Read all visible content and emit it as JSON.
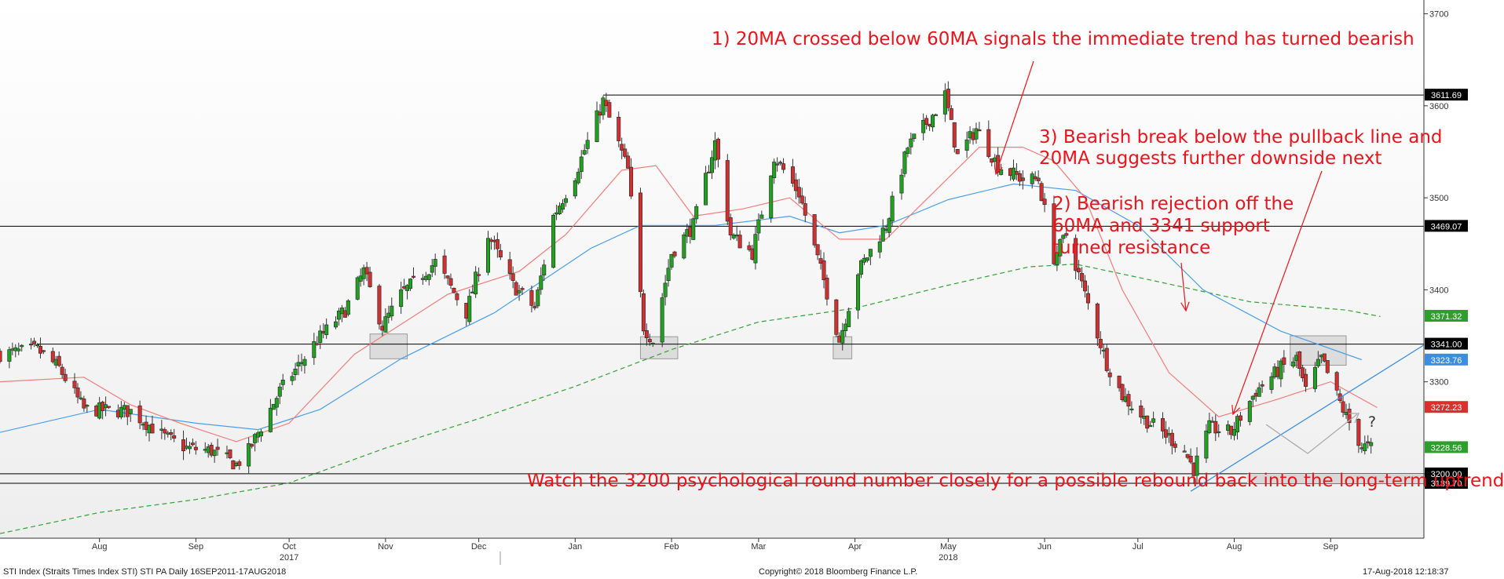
{
  "chart_data": {
    "type": "candlestick",
    "instrument": "STI Index (Straits Times Index STI) STI PA",
    "period": "Daily 16SEP2011-17AUG2018",
    "ylim": [
      3130,
      3715
    ],
    "y_ticks": [
      3200,
      3300,
      3400,
      3500,
      3600,
      3700
    ],
    "y_tick_labels": [
      "3200",
      "3300",
      "3400",
      "3500",
      "3600",
      "3700"
    ],
    "x_start": "2017-07-14",
    "x_end": "2018-10-15",
    "month_labels": [
      {
        "label": "Aug",
        "date": "2017-08-15"
      },
      {
        "label": "Sep",
        "date": "2017-09-15"
      },
      {
        "label": "Oct",
        "date": "2017-10-15"
      },
      {
        "label": "Nov",
        "date": "2017-11-15"
      },
      {
        "label": "Dec",
        "date": "2017-12-15"
      },
      {
        "label": "Jan",
        "date": "2018-01-15"
      },
      {
        "label": "Feb",
        "date": "2018-02-15"
      },
      {
        "label": "Mar",
        "date": "2018-03-15"
      },
      {
        "label": "Apr",
        "date": "2018-04-15"
      },
      {
        "label": "May",
        "date": "2018-05-15"
      },
      {
        "label": "Jun",
        "date": "2018-06-15"
      },
      {
        "label": "Jul",
        "date": "2018-07-15"
      },
      {
        "label": "Aug",
        "date": "2018-08-15"
      },
      {
        "label": "Sep",
        "date": "2018-09-15"
      }
    ],
    "year_labels": [
      {
        "label": "2017",
        "date": "2017-10-15"
      },
      {
        "label": "2018",
        "date": "2018-05-15"
      }
    ],
    "price_path": [
      {
        "date": "2017-07-14",
        "close": 3330
      },
      {
        "date": "2017-07-26",
        "close": 3335
      },
      {
        "date": "2017-08-02",
        "close": 3315
      },
      {
        "date": "2017-08-10",
        "close": 3270
      },
      {
        "date": "2017-08-25",
        "close": 3268
      },
      {
        "date": "2017-09-05",
        "close": 3240
      },
      {
        "date": "2017-09-12",
        "close": 3228
      },
      {
        "date": "2017-09-20",
        "close": 3225
      },
      {
        "date": "2017-09-28",
        "close": 3210
      },
      {
        "date": "2017-10-02",
        "close": 3225
      },
      {
        "date": "2017-10-12",
        "close": 3290
      },
      {
        "date": "2017-10-24",
        "close": 3345
      },
      {
        "date": "2017-11-02",
        "close": 3378
      },
      {
        "date": "2017-11-08",
        "close": 3420
      },
      {
        "date": "2017-11-14",
        "close": 3360
      },
      {
        "date": "2017-11-20",
        "close": 3395
      },
      {
        "date": "2017-12-01",
        "close": 3430
      },
      {
        "date": "2017-12-11",
        "close": 3375
      },
      {
        "date": "2017-12-18",
        "close": 3460
      },
      {
        "date": "2017-12-26",
        "close": 3405
      },
      {
        "date": "2018-01-02",
        "close": 3380
      },
      {
        "date": "2018-01-08",
        "close": 3480
      },
      {
        "date": "2018-01-15",
        "close": 3525
      },
      {
        "date": "2018-01-24",
        "close": 3605
      },
      {
        "date": "2018-02-01",
        "close": 3530
      },
      {
        "date": "2018-02-06",
        "close": 3360
      },
      {
        "date": "2018-02-09",
        "close": 3345
      },
      {
        "date": "2018-02-15",
        "close": 3440
      },
      {
        "date": "2018-02-22",
        "close": 3470
      },
      {
        "date": "2018-03-01",
        "close": 3560
      },
      {
        "date": "2018-03-06",
        "close": 3460
      },
      {
        "date": "2018-03-13",
        "close": 3440
      },
      {
        "date": "2018-03-20",
        "close": 3545
      },
      {
        "date": "2018-03-28",
        "close": 3505
      },
      {
        "date": "2018-04-05",
        "close": 3410
      },
      {
        "date": "2018-04-10",
        "close": 3345
      },
      {
        "date": "2018-04-16",
        "close": 3420
      },
      {
        "date": "2018-04-25",
        "close": 3470
      },
      {
        "date": "2018-05-02",
        "close": 3555
      },
      {
        "date": "2018-05-10",
        "close": 3590
      },
      {
        "date": "2018-05-14",
        "close": 3612
      },
      {
        "date": "2018-05-18",
        "close": 3545
      },
      {
        "date": "2018-05-24",
        "close": 3575
      },
      {
        "date": "2018-05-31",
        "close": 3535
      },
      {
        "date": "2018-06-08",
        "close": 3520
      },
      {
        "date": "2018-06-13",
        "close": 3520
      },
      {
        "date": "2018-06-18",
        "close": 3435
      },
      {
        "date": "2018-06-22",
        "close": 3460
      },
      {
        "date": "2018-06-28",
        "close": 3395
      },
      {
        "date": "2018-07-05",
        "close": 3320
      },
      {
        "date": "2018-07-10",
        "close": 3285
      },
      {
        "date": "2018-07-17",
        "close": 3260
      },
      {
        "date": "2018-07-25",
        "close": 3240
      },
      {
        "date": "2018-07-30",
        "close": 3225
      },
      {
        "date": "2018-08-02",
        "close": 3205
      },
      {
        "date": "2018-08-07",
        "close": 3250
      },
      {
        "date": "2018-08-14",
        "close": 3245
      },
      {
        "date": "2018-08-22",
        "close": 3290
      },
      {
        "date": "2018-08-30",
        "close": 3315
      },
      {
        "date": "2018-09-04",
        "close": 3325
      },
      {
        "date": "2018-09-07",
        "close": 3290
      },
      {
        "date": "2018-09-12",
        "close": 3325
      },
      {
        "date": "2018-09-17",
        "close": 3285
      },
      {
        "date": "2018-09-20",
        "close": 3262
      },
      {
        "date": "2018-09-25",
        "close": 3230
      },
      {
        "date": "2018-09-28",
        "close": 3228
      }
    ],
    "ma20": [
      {
        "date": "2017-07-14",
        "value": 3300
      },
      {
        "date": "2017-08-10",
        "value": 3305
      },
      {
        "date": "2017-08-25",
        "value": 3275
      },
      {
        "date": "2017-09-10",
        "value": 3255
      },
      {
        "date": "2017-09-28",
        "value": 3235
      },
      {
        "date": "2017-10-15",
        "value": 3255
      },
      {
        "date": "2017-11-05",
        "value": 3330
      },
      {
        "date": "2017-12-05",
        "value": 3395
      },
      {
        "date": "2017-12-28",
        "value": 3420
      },
      {
        "date": "2018-01-12",
        "value": 3460
      },
      {
        "date": "2018-01-30",
        "value": 3530
      },
      {
        "date": "2018-02-10",
        "value": 3535
      },
      {
        "date": "2018-02-22",
        "value": 3480
      },
      {
        "date": "2018-03-10",
        "value": 3488
      },
      {
        "date": "2018-03-25",
        "value": 3500
      },
      {
        "date": "2018-04-10",
        "value": 3455
      },
      {
        "date": "2018-04-25",
        "value": 3455
      },
      {
        "date": "2018-05-10",
        "value": 3505
      },
      {
        "date": "2018-05-25",
        "value": 3555
      },
      {
        "date": "2018-06-08",
        "value": 3555
      },
      {
        "date": "2018-06-18",
        "value": 3540
      },
      {
        "date": "2018-06-28",
        "value": 3500
      },
      {
        "date": "2018-07-10",
        "value": 3400
      },
      {
        "date": "2018-07-25",
        "value": 3310
      },
      {
        "date": "2018-08-10",
        "value": 3262
      },
      {
        "date": "2018-08-28",
        "value": 3280
      },
      {
        "date": "2018-09-15",
        "value": 3300
      },
      {
        "date": "2018-09-30",
        "value": 3272
      }
    ],
    "ma60": [
      {
        "date": "2017-07-14",
        "value": 3245
      },
      {
        "date": "2017-08-15",
        "value": 3270
      },
      {
        "date": "2017-09-15",
        "value": 3255
      },
      {
        "date": "2017-10-05",
        "value": 3248
      },
      {
        "date": "2017-10-25",
        "value": 3270
      },
      {
        "date": "2017-11-20",
        "value": 3325
      },
      {
        "date": "2017-12-20",
        "value": 3375
      },
      {
        "date": "2018-01-20",
        "value": 3445
      },
      {
        "date": "2018-02-05",
        "value": 3470
      },
      {
        "date": "2018-03-01",
        "value": 3470
      },
      {
        "date": "2018-03-25",
        "value": 3480
      },
      {
        "date": "2018-04-10",
        "value": 3462
      },
      {
        "date": "2018-04-25",
        "value": 3470
      },
      {
        "date": "2018-05-15",
        "value": 3498
      },
      {
        "date": "2018-06-05",
        "value": 3515
      },
      {
        "date": "2018-06-25",
        "value": 3508
      },
      {
        "date": "2018-07-15",
        "value": 3470
      },
      {
        "date": "2018-08-05",
        "value": 3400
      },
      {
        "date": "2018-08-30",
        "value": 3355
      },
      {
        "date": "2018-09-25",
        "value": 3324
      }
    ],
    "ma200": [
      {
        "date": "2017-07-14",
        "value": 3135
      },
      {
        "date": "2017-08-15",
        "value": 3158
      },
      {
        "date": "2017-09-15",
        "value": 3172
      },
      {
        "date": "2017-10-15",
        "value": 3190
      },
      {
        "date": "2017-11-15",
        "value": 3228
      },
      {
        "date": "2017-12-15",
        "value": 3260
      },
      {
        "date": "2018-01-15",
        "value": 3295
      },
      {
        "date": "2018-02-15",
        "value": 3335
      },
      {
        "date": "2018-03-15",
        "value": 3365
      },
      {
        "date": "2018-04-15",
        "value": 3380
      },
      {
        "date": "2018-05-15",
        "value": 3405
      },
      {
        "date": "2018-06-10",
        "value": 3425
      },
      {
        "date": "2018-06-25",
        "value": 3428
      },
      {
        "date": "2018-07-20",
        "value": 3410
      },
      {
        "date": "2018-08-20",
        "value": 3387
      },
      {
        "date": "2018-09-20",
        "value": 3378
      },
      {
        "date": "2018-10-01",
        "value": 3371
      }
    ],
    "horizontal_levels": [
      {
        "value": 3611.69,
        "label": "3611.69",
        "from": "2018-01-24",
        "color": "#000000"
      },
      {
        "value": 3469.07,
        "label": "3469.07",
        "from": "2017-07-14",
        "color": "#000000"
      },
      {
        "value": 3341.0,
        "label": "3341.00",
        "from": "2017-07-26",
        "color": "#000000"
      },
      {
        "value": 3200.0,
        "label": "3200.00",
        "from": "2017-07-14",
        "color": "#000000"
      },
      {
        "value": 3189.7,
        "label": "3189.70",
        "from": "2017-07-14",
        "color": "#000000"
      }
    ],
    "value_tags": [
      {
        "value": 3611.69,
        "label": "3611.69",
        "color": "#000000"
      },
      {
        "value": 3469.07,
        "label": "3469.07",
        "color": "#000000"
      },
      {
        "value": 3371.32,
        "label": "3371.32",
        "color": "#2e9e2e"
      },
      {
        "value": 3341.0,
        "label": "3341.00",
        "color": "#000000"
      },
      {
        "value": 3323.76,
        "label": "3323.76",
        "color": "#3a8de0"
      },
      {
        "value": 3272.23,
        "label": "3272.23",
        "color": "#d9302c"
      },
      {
        "value": 3228.56,
        "label": "3228.56",
        "color": "#2e9e2e"
      },
      {
        "value": 3200.0,
        "label": "3200.00",
        "color": "#000000"
      },
      {
        "value": 3189.7,
        "label": "3189.70",
        "color": "#000000"
      }
    ],
    "highlight_boxes": [
      {
        "from": "2017-11-10",
        "to": "2017-11-22",
        "y1": 3325,
        "y2": 3352
      },
      {
        "from": "2018-02-05",
        "to": "2018-02-17",
        "y1": 3325,
        "y2": 3349
      },
      {
        "from": "2018-04-08",
        "to": "2018-04-14",
        "y1": 3325,
        "y2": 3349
      },
      {
        "from": "2018-09-02",
        "to": "2018-09-20",
        "y1": 3318,
        "y2": 3350
      }
    ],
    "trendline": {
      "from_date": "2018-08-01",
      "from_value": 3181,
      "to_date": "2018-10-15",
      "to_value": 3340
    },
    "colors": {
      "up": "#22a022",
      "down": "#d03030",
      "ma20": "#f07c7c",
      "ma60": "#4a9ee8",
      "ma200": "#33a033",
      "annotation": "#e8141c"
    },
    "annotations": [
      "1) 20MA crossed below 60MA signals the immediate trend has turned bearish",
      "3) Bearish break below the pullback line and",
      "20MA suggests further downside next",
      "2) Bearish rejection off the",
      "60MA and 3341 support",
      "turned resistance",
      "Watch the 3200 psychological round number closely for a possible rebound back into the long-term uptrend",
      "?"
    ]
  },
  "footer": {
    "left": "STI Index (Straits Times Index STI) STI PA  Daily 16SEP2011-17AUG2018",
    "center": "Copyright© 2018 Bloomberg Finance L.P.",
    "right": "17-Aug-2018 12:18:37"
  }
}
